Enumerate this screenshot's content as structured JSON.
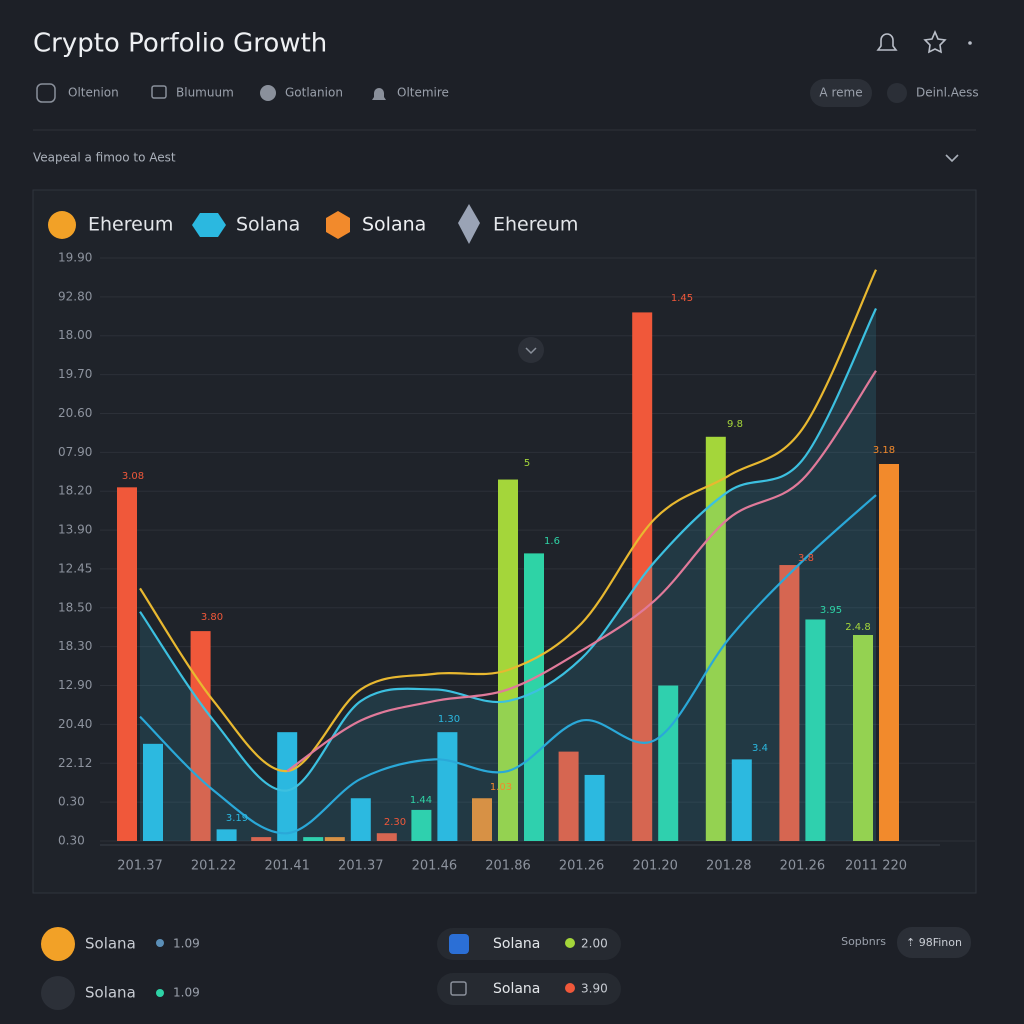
{
  "header": {
    "title": "Crypto Porfolio Growth"
  },
  "tabs": [
    "Oltenion",
    "Blumuum",
    "Gotlanion",
    "Oltemire"
  ],
  "actions": [
    "A reme",
    "Deinl.Aess"
  ],
  "filter": "Veapeal a fimoo to Aest",
  "chart_data": {
    "type": "bar",
    "legend": [
      "Ehereum",
      "Solana",
      "Solana",
      "Ehereum"
    ],
    "categories": [
      "201.37",
      "201.22",
      "201.41",
      "201.37",
      "201.46",
      "201.86",
      "201.26",
      "201.20",
      "201.28",
      "201.26",
      "2011 220"
    ],
    "ylim": [
      0,
      15
    ],
    "yticks": [
      {
        "value": 0,
        "label": "0.30"
      },
      {
        "value": 1,
        "label": "0.30"
      },
      {
        "value": 2,
        "label": "22.12"
      },
      {
        "value": 3,
        "label": "20.40"
      },
      {
        "value": 4,
        "label": "12.90"
      },
      {
        "value": 5,
        "label": "18.30"
      },
      {
        "value": 6,
        "label": "18.50"
      },
      {
        "value": 7,
        "label": "12.45"
      },
      {
        "value": 8,
        "label": "13.90"
      },
      {
        "value": 9,
        "label": "18.20"
      },
      {
        "value": 10,
        "label": "07.90"
      },
      {
        "value": 11,
        "label": "20.60"
      },
      {
        "value": 12,
        "label": "19.70"
      },
      {
        "value": 13,
        "label": "18.00"
      },
      {
        "value": 14,
        "label": "92.80"
      },
      {
        "value": 15,
        "label": "19.90"
      }
    ],
    "grid": true,
    "series": [
      {
        "values": [
          9.1,
          5.4,
          0.1,
          0.1,
          0.8,
          1.1,
          2.3,
          13.6,
          10.4,
          7.1,
          5.3
        ],
        "colors": [
          "#f0583a",
          "#f0583a",
          "#f0583a",
          "#f28a2c",
          "#2ed3a6",
          "#f28a2c",
          "#f0583a",
          "#f0583a",
          "#a4d63a",
          "#f0583a",
          "#a4d63a"
        ]
      },
      {
        "values": [
          2.5,
          0.3,
          2.8,
          1.1,
          2.8,
          9.3,
          1.7,
          4.0,
          2.1,
          5.7,
          9.7
        ],
        "colors": [
          "#2bb8e0",
          "#2bb8e0",
          "#2bb8e0",
          "#2bb8e0",
          "#2bb8e0",
          "#a4d63a",
          "#2bb8e0",
          "#2ed3a6",
          "#2bb8e0",
          "#2ed3a6",
          "#f28a2c"
        ]
      },
      {
        "values": [
          null,
          null,
          0.1,
          0.2,
          null,
          7.4,
          null,
          null,
          null,
          null,
          null
        ],
        "colors": [
          null,
          null,
          "#2ed3a6",
          "#f0583a",
          null,
          "#2ed3a6",
          null,
          null,
          null,
          null,
          null
        ]
      }
    ],
    "lines": [
      {
        "color": "#e8b830",
        "values": [
          6.5,
          3.6,
          1.8,
          3.9,
          4.3,
          4.4,
          5.6,
          8.3,
          9.4,
          10.6,
          14.7
        ]
      },
      {
        "color": "#3cc0e0",
        "values": [
          5.9,
          3.1,
          1.3,
          3.6,
          3.9,
          3.6,
          4.7,
          7.2,
          9.0,
          9.8,
          13.7
        ]
      },
      {
        "color": "#e07a9a",
        "values": [
          null,
          null,
          1.8,
          3.1,
          3.6,
          3.9,
          4.9,
          6.2,
          8.3,
          9.3,
          12.1
        ]
      },
      {
        "color": "#2aa8d8",
        "values": [
          3.2,
          1.3,
          0.2,
          1.6,
          2.1,
          1.8,
          3.1,
          2.6,
          5.2,
          7.2,
          8.9
        ]
      }
    ],
    "annotations": [
      "3.08",
      "3.80",
      "3.19",
      "1.45",
      "9.8",
      "1.6",
      "3.18",
      "3.8",
      "3.95",
      "2.4.8",
      "3.4",
      "1.03",
      "1.30",
      "1.44",
      "2.30",
      "5"
    ]
  },
  "footer": {
    "items": [
      {
        "name": "Solana",
        "value": "1.09"
      },
      {
        "name": "Solana",
        "value": "1.09"
      }
    ],
    "pills": [
      {
        "name": "Solana",
        "value": "2.00"
      },
      {
        "name": "Solana",
        "value": "3.90"
      }
    ],
    "side_label": "Sopbnrs",
    "side_button": "⇡ 98Finon"
  }
}
